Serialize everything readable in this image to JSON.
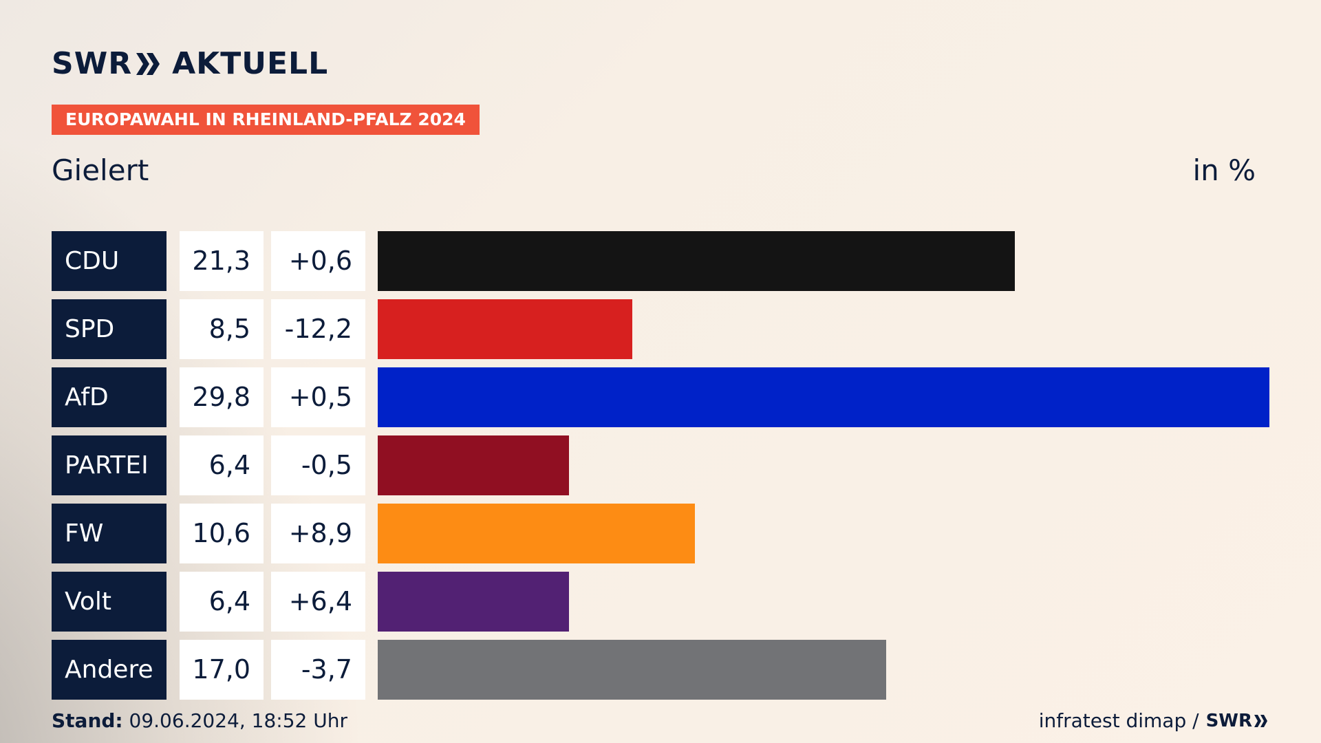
{
  "brand": {
    "logo_left": "SWR",
    "logo_right": "AKTUELL",
    "logo_icon": "double-chevron-icon"
  },
  "header": {
    "badge": "EUROPAWAHL IN RHEINLAND-PFALZ 2024",
    "subtitle": "Gielert",
    "unit": "in %"
  },
  "colors": {
    "navy": "#0c1c3a",
    "badge": "#f0533a"
  },
  "chart_data": {
    "type": "bar",
    "orientation": "horizontal",
    "title": "EUROPAWAHL IN RHEINLAND-PFALZ 2024",
    "subtitle": "Gielert",
    "unit": "in %",
    "categories": [
      "CDU",
      "SPD",
      "AfD",
      "PARTEI",
      "FW",
      "Volt",
      "Andere"
    ],
    "values": [
      21.3,
      8.5,
      29.8,
      6.4,
      10.6,
      6.4,
      17.0
    ],
    "value_labels": [
      "21,3",
      "8,5",
      "29,8",
      "6,4",
      "10,6",
      "6,4",
      "17,0"
    ],
    "change_labels": [
      "+0,6",
      "-12,2",
      "+0,5",
      "-0,5",
      "+8,9",
      "+6,4",
      "-3,7"
    ],
    "changes": [
      0.6,
      -12.2,
      0.5,
      -0.5,
      8.9,
      6.4,
      -3.7
    ],
    "bar_colors": [
      "#141414",
      "#d7201f",
      "#0022c8",
      "#900f22",
      "#fd8c14",
      "#522173",
      "#727376"
    ],
    "xlim": [
      0,
      29.8
    ]
  },
  "footer": {
    "stand_label": "Stand:",
    "stand_value": "09.06.2024, 18:52 Uhr",
    "source": "infratest dimap /",
    "source_logo": "SWR"
  }
}
